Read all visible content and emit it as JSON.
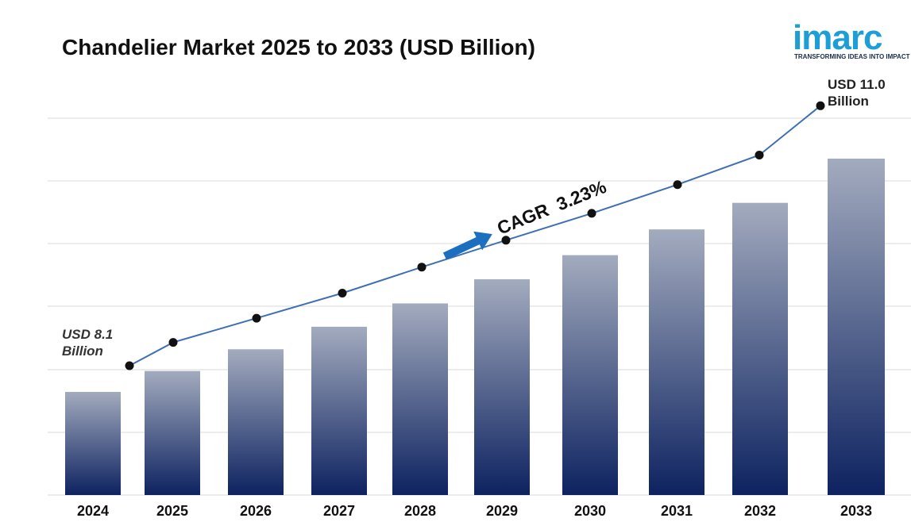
{
  "chart_data": {
    "type": "bar",
    "title": "Chandelier Market 2025 to 2033 (USD Billion)",
    "categories": [
      "2024",
      "2025",
      "2026",
      "2027",
      "2028",
      "2029",
      "2030",
      "2031",
      "2032",
      "2033"
    ],
    "series": [
      {
        "type": "bar",
        "values": [
          8.1,
          8.36,
          8.63,
          8.91,
          9.2,
          9.5,
          9.8,
          10.12,
          10.45,
          11.0
        ]
      },
      {
        "type": "line",
        "values": [
          8.1,
          8.36,
          8.63,
          8.91,
          9.2,
          9.5,
          9.8,
          10.12,
          10.45,
          11.0
        ]
      }
    ],
    "annotations": {
      "start_label": [
        "USD 8.1",
        "Billion"
      ],
      "end_label": [
        "USD 11.0",
        "Billion"
      ],
      "cagr_label": "CAGR  3.23%"
    },
    "xlabel": "",
    "ylabel": "",
    "grid": true,
    "colors": {
      "bar_top": "#a3abbe",
      "bar_bottom": "#0d2260",
      "line": "#3f6fb3",
      "marker": "#111111",
      "arrow": "#1b6fc0",
      "grid": "#d9d9d9"
    }
  },
  "logo": {
    "word": "imarc",
    "tagline": "TRANSFORMING IDEAS INTO IMPACT",
    "color": "#1e9ed6"
  }
}
